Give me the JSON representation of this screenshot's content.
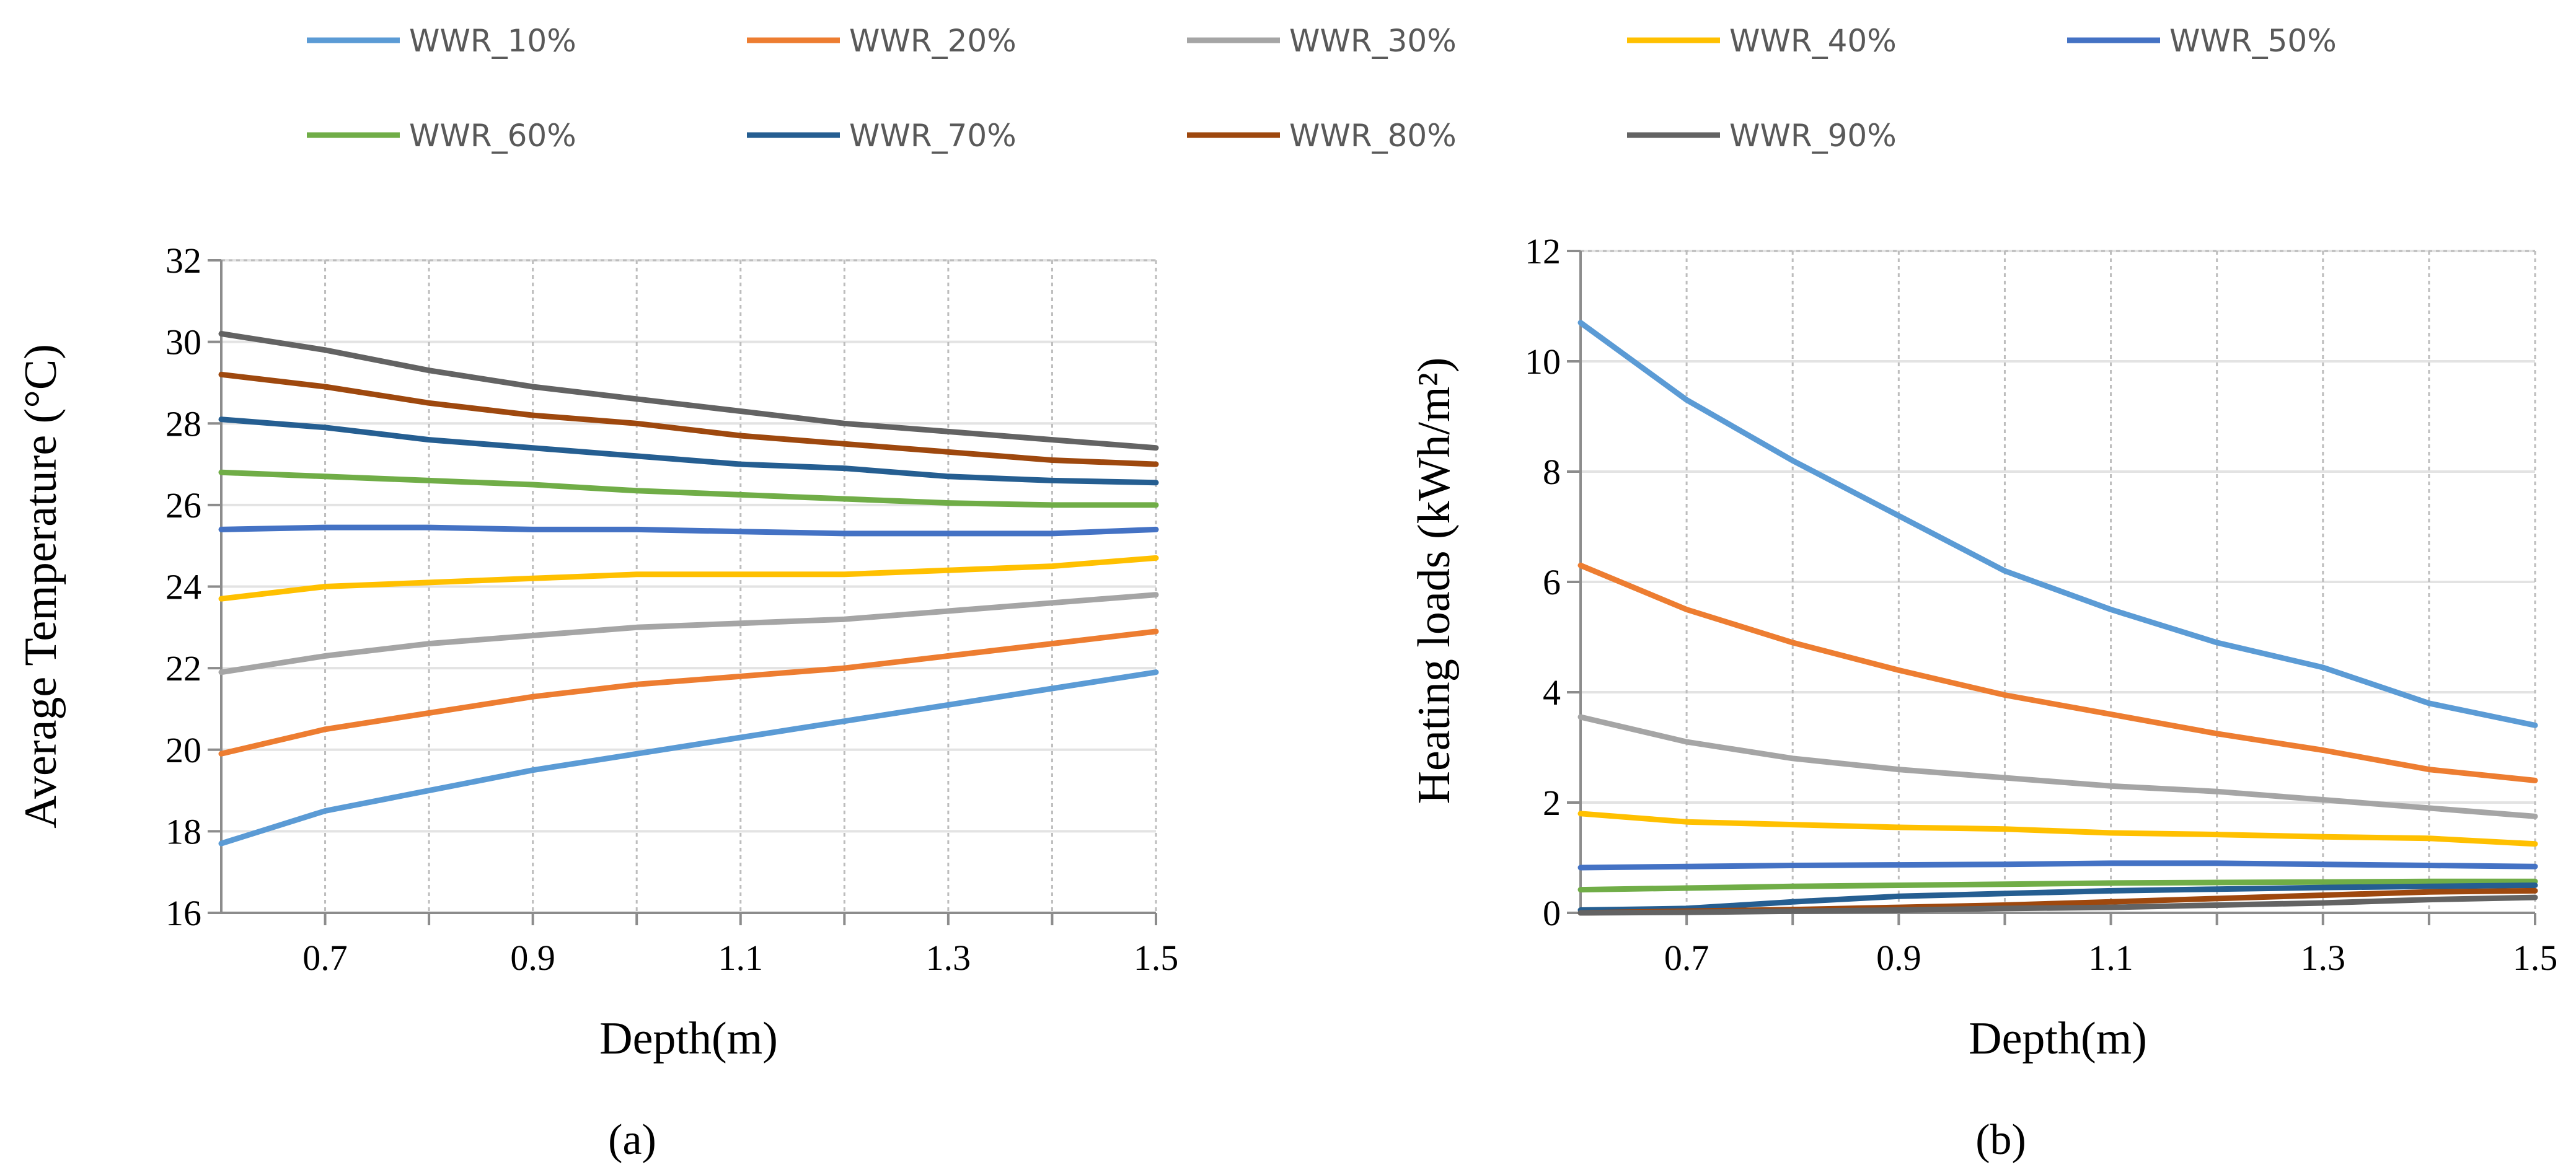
{
  "legend": [
    {
      "name": "WWR_10%",
      "color": "#5b9bd5"
    },
    {
      "name": "WWR_20%",
      "color": "#ed7d31"
    },
    {
      "name": "WWR_30%",
      "color": "#a5a5a5"
    },
    {
      "name": "WWR_40%",
      "color": "#ffc000"
    },
    {
      "name": "WWR_50%",
      "color": "#4472c4"
    },
    {
      "name": "WWR_60%",
      "color": "#70ad47"
    },
    {
      "name": "WWR_70%",
      "color": "#255e91"
    },
    {
      "name": "WWR_80%",
      "color": "#9e480e"
    },
    {
      "name": "WWR_90%",
      "color": "#636363"
    }
  ],
  "chart_data": [
    {
      "type": "line",
      "panel": "a",
      "caption": "(a)",
      "xlabel": "Depth(m)",
      "ylabel": "Average Temperature (°C)",
      "x": [
        0.6,
        0.7,
        0.8,
        0.9,
        1.0,
        1.1,
        1.2,
        1.3,
        1.4,
        1.5
      ],
      "xlim": [
        0.6,
        1.5
      ],
      "xticks": [
        0.7,
        0.9,
        1.1,
        1.3,
        1.5
      ],
      "xtick_labels": [
        "0.7",
        "0.9",
        "1.1",
        "1.3",
        "1.5"
      ],
      "ylim": [
        16,
        32
      ],
      "yticks": [
        16,
        18,
        20,
        22,
        24,
        26,
        28,
        30,
        32
      ],
      "ytick_labels": [
        "16",
        "18",
        "20",
        "22",
        "24",
        "26",
        "28",
        "30",
        "32"
      ],
      "grid": true,
      "legend_position": "top",
      "series": [
        {
          "name": "WWR_10%",
          "values": [
            17.7,
            18.5,
            19.0,
            19.5,
            19.9,
            20.3,
            20.7,
            21.1,
            21.5,
            21.9
          ]
        },
        {
          "name": "WWR_20%",
          "values": [
            19.9,
            20.5,
            20.9,
            21.3,
            21.6,
            21.8,
            22.0,
            22.3,
            22.6,
            22.9
          ]
        },
        {
          "name": "WWR_30%",
          "values": [
            21.9,
            22.3,
            22.6,
            22.8,
            23.0,
            23.1,
            23.2,
            23.4,
            23.6,
            23.8
          ]
        },
        {
          "name": "WWR_40%",
          "values": [
            23.7,
            24.0,
            24.1,
            24.2,
            24.3,
            24.3,
            24.3,
            24.4,
            24.5,
            24.7
          ]
        },
        {
          "name": "WWR_50%",
          "values": [
            25.4,
            25.45,
            25.45,
            25.4,
            25.4,
            25.35,
            25.3,
            25.3,
            25.3,
            25.4
          ]
        },
        {
          "name": "WWR_60%",
          "values": [
            26.8,
            26.7,
            26.6,
            26.5,
            26.35,
            26.25,
            26.15,
            26.05,
            26.0,
            26.0
          ]
        },
        {
          "name": "WWR_70%",
          "values": [
            28.1,
            27.9,
            27.6,
            27.4,
            27.2,
            27.0,
            26.9,
            26.7,
            26.6,
            26.55
          ]
        },
        {
          "name": "WWR_80%",
          "values": [
            29.2,
            28.9,
            28.5,
            28.2,
            28.0,
            27.7,
            27.5,
            27.3,
            27.1,
            27.0
          ]
        },
        {
          "name": "WWR_90%",
          "values": [
            30.2,
            29.8,
            29.3,
            28.9,
            28.6,
            28.3,
            28.0,
            27.8,
            27.6,
            27.4
          ]
        }
      ]
    },
    {
      "type": "line",
      "panel": "b",
      "caption": "(b)",
      "xlabel": "Depth(m)",
      "ylabel": "Heating loads (kWh/m²)",
      "x": [
        0.6,
        0.7,
        0.8,
        0.9,
        1.0,
        1.1,
        1.2,
        1.3,
        1.4,
        1.5
      ],
      "xlim": [
        0.6,
        1.5
      ],
      "xticks": [
        0.7,
        0.9,
        1.1,
        1.3,
        1.5
      ],
      "xtick_labels": [
        "0.7",
        "0.9",
        "1.1",
        "1.3",
        "1.5"
      ],
      "ylim": [
        0,
        12
      ],
      "yticks": [
        0,
        2,
        4,
        6,
        8,
        10,
        12
      ],
      "ytick_labels": [
        "0",
        "2",
        "4",
        "6",
        "8",
        "10",
        "12"
      ],
      "grid": true,
      "legend_position": "top",
      "series": [
        {
          "name": "WWR_10%",
          "values": [
            10.7,
            9.3,
            8.2,
            7.2,
            6.2,
            5.5,
            4.9,
            4.45,
            3.8,
            3.4
          ]
        },
        {
          "name": "WWR_20%",
          "values": [
            6.3,
            5.5,
            4.9,
            4.4,
            3.95,
            3.6,
            3.25,
            2.95,
            2.6,
            2.4
          ]
        },
        {
          "name": "WWR_30%",
          "values": [
            3.55,
            3.1,
            2.8,
            2.6,
            2.45,
            2.3,
            2.2,
            2.05,
            1.9,
            1.75
          ]
        },
        {
          "name": "WWR_40%",
          "values": [
            1.8,
            1.65,
            1.6,
            1.55,
            1.52,
            1.45,
            1.42,
            1.38,
            1.35,
            1.25
          ]
        },
        {
          "name": "WWR_50%",
          "values": [
            0.82,
            0.84,
            0.86,
            0.87,
            0.88,
            0.9,
            0.9,
            0.88,
            0.86,
            0.84
          ]
        },
        {
          "name": "WWR_60%",
          "values": [
            0.42,
            0.45,
            0.48,
            0.5,
            0.52,
            0.54,
            0.55,
            0.56,
            0.57,
            0.57
          ]
        },
        {
          "name": "WWR_70%",
          "values": [
            0.05,
            0.08,
            0.2,
            0.3,
            0.35,
            0.4,
            0.43,
            0.46,
            0.48,
            0.5
          ]
        },
        {
          "name": "WWR_80%",
          "values": [
            0.0,
            0.03,
            0.06,
            0.1,
            0.14,
            0.2,
            0.26,
            0.32,
            0.38,
            0.4
          ]
        },
        {
          "name": "WWR_90%",
          "values": [
            0.0,
            0.01,
            0.03,
            0.05,
            0.08,
            0.1,
            0.14,
            0.18,
            0.24,
            0.28
          ]
        }
      ]
    }
  ]
}
